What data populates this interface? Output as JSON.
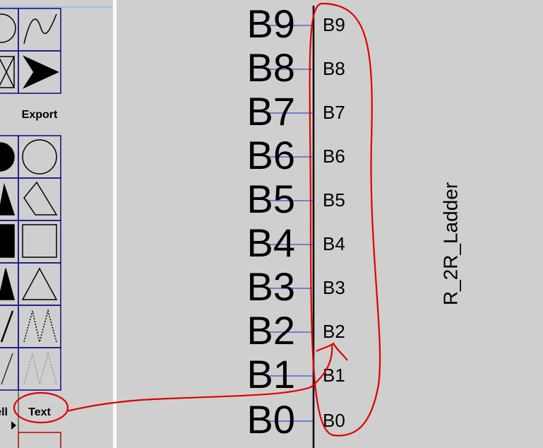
{
  "toolbar": {
    "buttons": [
      "Export",
      "ell",
      "Text"
    ]
  },
  "schematic": {
    "pins": [
      {
        "net": "B9",
        "pin": "B9"
      },
      {
        "net": "B8",
        "pin": "B8"
      },
      {
        "net": "B7",
        "pin": "B7"
      },
      {
        "net": "B6",
        "pin": "B6"
      },
      {
        "net": "B5",
        "pin": "B5"
      },
      {
        "net": "B4",
        "pin": "B4"
      },
      {
        "net": "B3",
        "pin": "B3"
      },
      {
        "net": "B2",
        "pin": "B2"
      },
      {
        "net": "B1",
        "pin": "B1"
      },
      {
        "net": "B0",
        "pin": "B0"
      }
    ],
    "component_label": "R_2R_Ladder"
  }
}
